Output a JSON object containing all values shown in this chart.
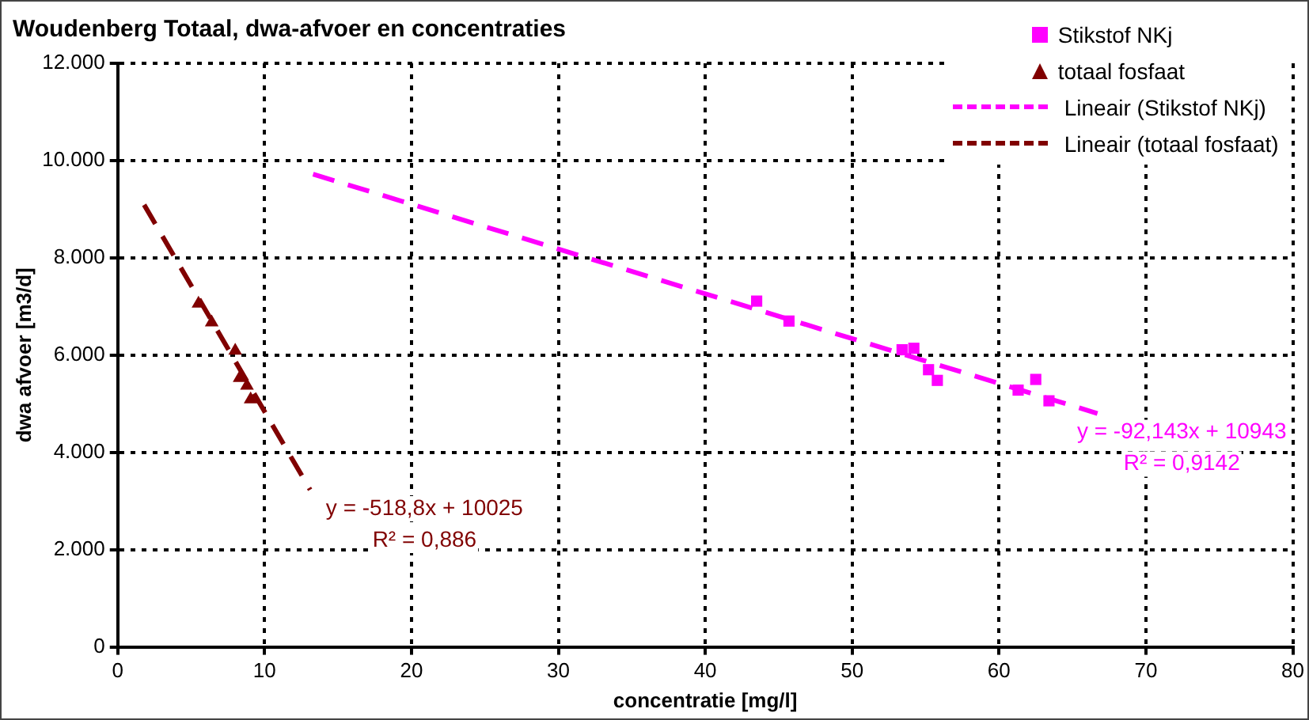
{
  "chart_data": {
    "type": "scatter",
    "title": "Woudenberg Totaal, dwa-afvoer en concentraties",
    "xlabel": "concentratie [mg/l]",
    "ylabel": "dwa afvoer [m3/d]",
    "xlim": [
      0,
      80
    ],
    "xticks": [
      0,
      10,
      20,
      30,
      40,
      50,
      60,
      70,
      80
    ],
    "ylim": [
      0,
      12000
    ],
    "yticks": [
      0,
      {
        "value": 2000,
        "label": "2.000"
      },
      {
        "value": 4000,
        "label": "4.000"
      },
      {
        "value": 6000,
        "label": "6.000"
      },
      {
        "value": 8000,
        "label": "8.000"
      },
      {
        "value": 10000,
        "label": "10.000"
      },
      {
        "value": 12000,
        "label": "12.000"
      }
    ],
    "grid": true,
    "legend": "top right",
    "series": [
      {
        "name": "Stikstof NKj",
        "marker": "square",
        "color": "#ff00ff",
        "x": [
          43.5,
          45.7,
          53.4,
          54.2,
          55.2,
          55.8,
          61.3,
          62.5,
          63.4
        ],
        "values": [
          7110,
          6700,
          6110,
          6140,
          5700,
          5480,
          5280,
          5500,
          5060
        ]
      },
      {
        "name": "totaal fosfaat",
        "marker": "triangle",
        "color": "#800000",
        "x": [
          5.5,
          6.4,
          8.0,
          8.3,
          8.8,
          9.05
        ],
        "values": [
          7060,
          6670,
          6090,
          5530,
          5370,
          5090
        ]
      },
      {
        "name": "Lineair (Stikstof NKj)",
        "type": "line",
        "line_style": "dashed",
        "marker": "none",
        "color": "#ff00ff",
        "x": [
          13.3,
          66.7
        ],
        "values": [
          9720,
          4800
        ]
      },
      {
        "name": "Lineair (totaal fosfaat)",
        "type": "line",
        "line_style": "dashed",
        "marker": "none",
        "color": "#800000",
        "x": [
          1.8,
          13.1
        ],
        "values": [
          9090,
          3230
        ]
      }
    ],
    "annotations": [
      "y = -92,143x + 10943",
      "R² = 0,9142",
      "y = -518,8x + 10025",
      "R² = 0,886"
    ]
  }
}
